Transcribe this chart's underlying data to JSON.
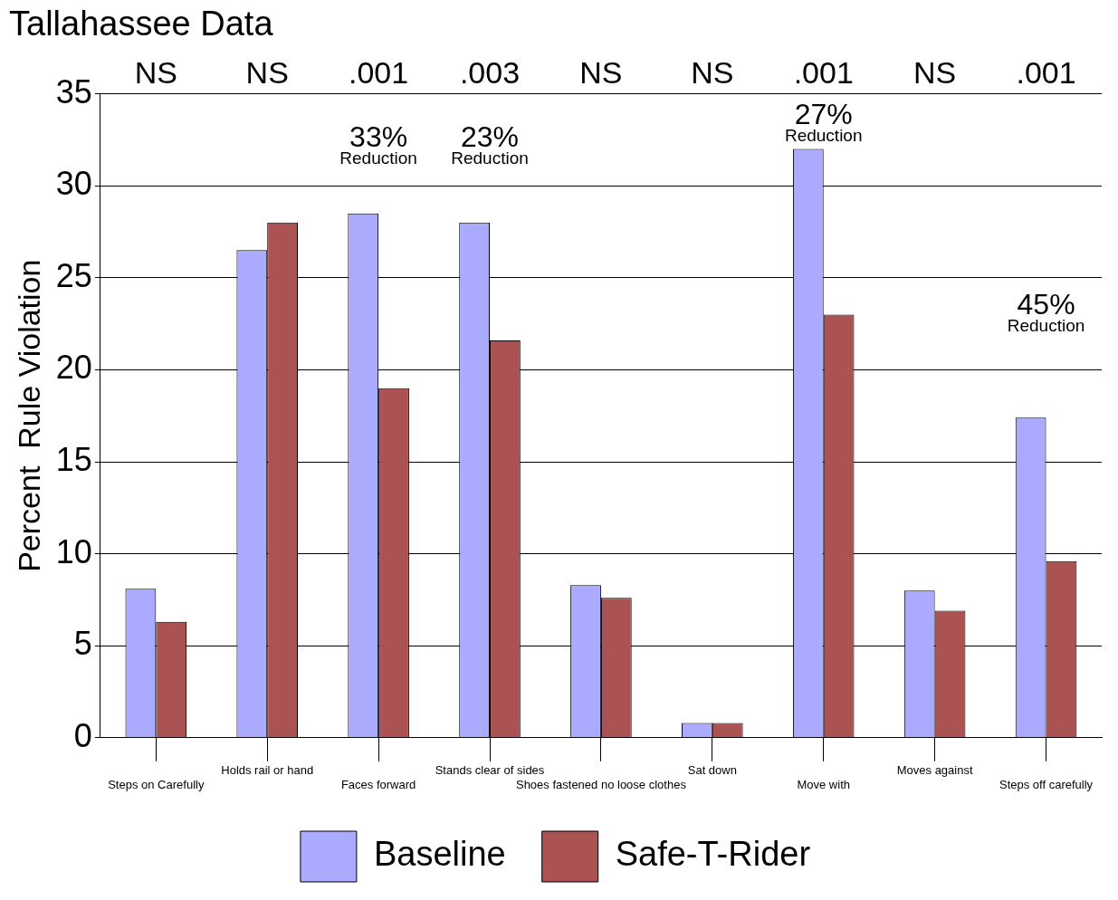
{
  "chart_data": {
    "type": "bar",
    "title": "Tallahassee Data",
    "ylabel": "Percent  Rule Violation",
    "categories": [
      "Steps on Carefully",
      "Holds rail or hand",
      "Faces forward",
      "Stands clear of sides",
      "Shoes fastened no loose clothes",
      "Sat down",
      "Move with",
      "Moves against",
      "Steps off carefully"
    ],
    "series": [
      {
        "name": "Baseline",
        "color": "#aaaaff",
        "values": [
          8.1,
          26.5,
          28.5,
          28.0,
          8.3,
          0.8,
          32.0,
          8.0,
          17.4
        ]
      },
      {
        "name": "Safe-T-Rider",
        "color": "#ab5353",
        "values": [
          6.3,
          28.0,
          19.0,
          21.6,
          7.6,
          0.8,
          23.0,
          6.9,
          9.6
        ]
      }
    ],
    "ylim": [
      0,
      35
    ],
    "yticks": [
      0,
      5,
      10,
      15,
      20,
      25,
      30,
      35
    ],
    "grid": "y",
    "legend": "bottom",
    "annotations": [
      "NS",
      "NS",
      ".001",
      ".003",
      "NS",
      "NS",
      ".001",
      "NS",
      ".001",
      "33%\nReduction",
      "23%\nReduction",
      "27%\nReduction",
      "45%\nReduction"
    ]
  }
}
